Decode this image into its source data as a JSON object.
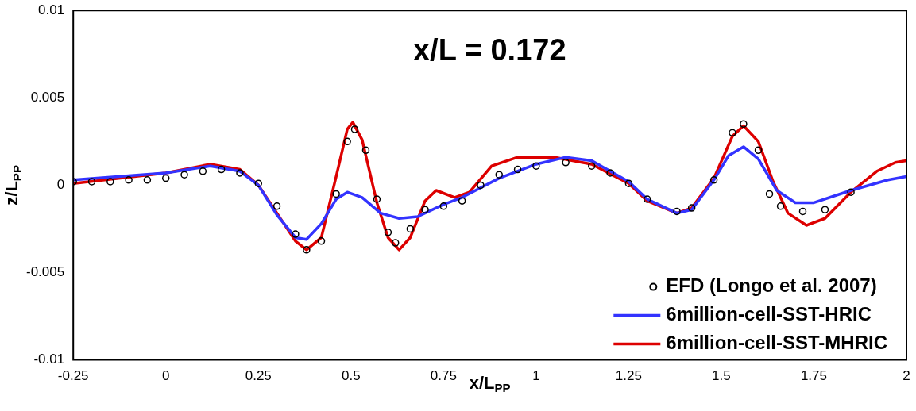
{
  "chart_data": {
    "type": "line",
    "xlabel": "x/L$_{PP}$",
    "ylabel": "z/L$_{PP}$",
    "annotations": [
      "x/L = 0.172"
    ],
    "xlim": [
      -0.25,
      2
    ],
    "xticks": [
      -0.25,
      0,
      0.25,
      0.5,
      0.75,
      1,
      1.25,
      1.5,
      1.75,
      2
    ],
    "ylim": [
      -0.01,
      0.01
    ],
    "yticks": [
      -0.01,
      -0.005,
      0,
      0.005,
      0.01
    ],
    "grid": false,
    "legend": "bottom right",
    "series": [
      {
        "name": "EFD (Longo et al. 2007)",
        "type": "scatter",
        "marker": "circle",
        "color": "#000000",
        "x": [
          -0.25,
          -0.2,
          -0.15,
          -0.1,
          -0.05,
          0,
          0.05,
          0.1,
          0.15,
          0.2,
          0.25,
          0.3,
          0.35,
          0.38,
          0.42,
          0.46,
          0.49,
          0.51,
          0.54,
          0.57,
          0.6,
          0.62,
          0.66,
          0.7,
          0.75,
          0.8,
          0.85,
          0.9,
          0.95,
          1,
          1.08,
          1.15,
          1.2,
          1.25,
          1.3,
          1.38,
          1.42,
          1.48,
          1.53,
          1.56,
          1.6,
          1.63,
          1.66,
          1.72,
          1.78,
          1.85
        ],
        "values": [
          0.0002,
          0.0002,
          0.0002,
          0.0003,
          0.0003,
          0.0004,
          0.0006,
          0.0008,
          0.0009,
          0.0007,
          0.0001,
          -0.0012,
          -0.0028,
          -0.0037,
          -0.0032,
          -0.0005,
          0.0025,
          0.0032,
          0.002,
          -0.0008,
          -0.0027,
          -0.0033,
          -0.0025,
          -0.0014,
          -0.0012,
          -0.0009,
          0,
          0.0006,
          0.0009,
          0.0011,
          0.0013,
          0.0011,
          0.0007,
          0.0001,
          -0.0008,
          -0.0015,
          -0.0013,
          0.0003,
          0.003,
          0.0035,
          0.002,
          -0.0005,
          -0.0012,
          -0.0015,
          -0.0014,
          -0.0004
        ]
      },
      {
        "name": "6million-cell-SST-HRIC",
        "type": "line",
        "marker": "none",
        "line_style": "solid",
        "color": "#3333ff",
        "x": [
          -0.25,
          0,
          0.12,
          0.2,
          0.25,
          0.3,
          0.35,
          0.38,
          0.42,
          0.46,
          0.49,
          0.53,
          0.58,
          0.63,
          0.68,
          0.75,
          0.8,
          0.9,
          1,
          1.08,
          1.15,
          1.25,
          1.3,
          1.38,
          1.42,
          1.48,
          1.52,
          1.56,
          1.6,
          1.65,
          1.7,
          1.75,
          1.85,
          1.95,
          2
        ],
        "values": [
          0.0003,
          0.0007,
          0.0011,
          0.0008,
          0,
          -0.0017,
          -0.003,
          -0.0031,
          -0.0022,
          -0.0008,
          -0.0004,
          -0.0007,
          -0.0016,
          -0.0019,
          -0.0018,
          -0.0011,
          -0.0007,
          0.0004,
          0.0012,
          0.0016,
          0.0014,
          0.0002,
          -0.0008,
          -0.0016,
          -0.0014,
          0.0003,
          0.0017,
          0.0022,
          0.0015,
          -0.0003,
          -0.001,
          -0.001,
          -0.0003,
          0.0003,
          0.0005
        ]
      },
      {
        "name": "6million-cell-SST-MHRIC",
        "type": "line",
        "marker": "none",
        "line_style": "solid",
        "color": "#dd0000",
        "x": [
          -0.25,
          0,
          0.12,
          0.2,
          0.25,
          0.3,
          0.35,
          0.38,
          0.42,
          0.46,
          0.49,
          0.505,
          0.53,
          0.57,
          0.6,
          0.63,
          0.66,
          0.7,
          0.73,
          0.78,
          0.82,
          0.88,
          0.95,
          1.05,
          1.15,
          1.25,
          1.3,
          1.38,
          1.42,
          1.48,
          1.53,
          1.56,
          1.6,
          1.64,
          1.68,
          1.73,
          1.78,
          1.85,
          1.92,
          1.97,
          2
        ],
        "values": [
          0.0001,
          0.0007,
          0.0012,
          0.0009,
          0,
          -0.0016,
          -0.0032,
          -0.0037,
          -0.003,
          0.0005,
          0.0032,
          0.0036,
          0.0026,
          -0.001,
          -0.003,
          -0.0037,
          -0.003,
          -0.0009,
          -0.0003,
          -0.0007,
          -0.0004,
          0.0011,
          0.0016,
          0.0016,
          0.0012,
          0.0001,
          -0.0009,
          -0.0016,
          -0.0013,
          0.0004,
          0.0028,
          0.0034,
          0.0025,
          0.0002,
          -0.0016,
          -0.0023,
          -0.0019,
          -0.0004,
          0.0008,
          0.0013,
          0.0014
        ]
      }
    ]
  }
}
